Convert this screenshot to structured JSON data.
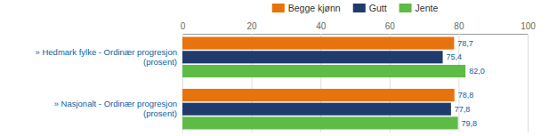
{
  "chart_data": {
    "type": "bar",
    "orientation": "horizontal",
    "categories": [
      "» Hedmark fylke - Ordinær progresjon\n                     (prosent)",
      "» Nasjonalt - Ordinær progresjon\n                     (prosent)"
    ],
    "series": [
      {
        "name": "Begge kjønn",
        "color": "#E8720C",
        "values": [
          78.7,
          78.8
        ],
        "value_labels": [
          "78,7",
          "78,8"
        ]
      },
      {
        "name": "Gutt",
        "color": "#1F3B6E",
        "values": [
          75.4,
          77.8
        ],
        "value_labels": [
          "75,4",
          "77,8"
        ]
      },
      {
        "name": "Jente",
        "color": "#5DBB46",
        "values": [
          82.0,
          79.8
        ],
        "value_labels": [
          "82,0",
          "79,8"
        ]
      }
    ],
    "xlim": [
      0,
      100
    ],
    "xticks": [
      0,
      20,
      40,
      60,
      80,
      100
    ],
    "grid": true,
    "data_labels": true,
    "legend": "top"
  }
}
